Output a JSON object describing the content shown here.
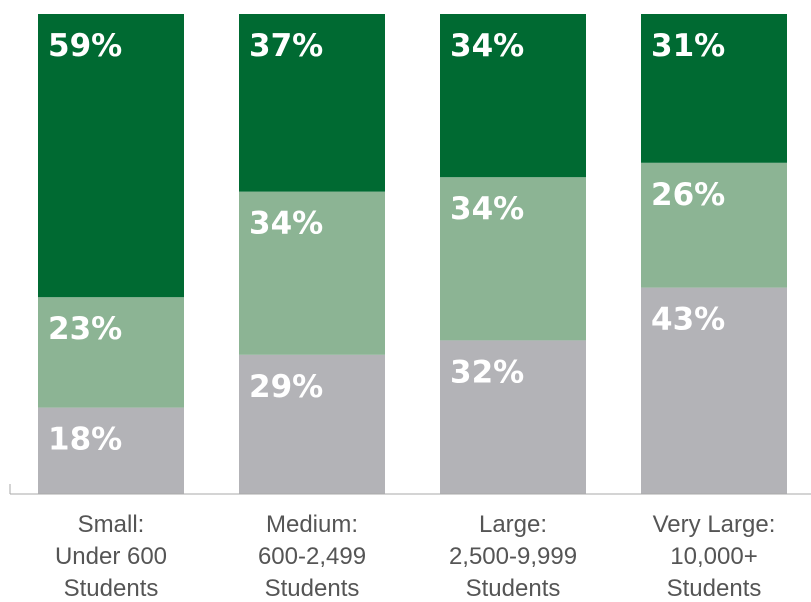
{
  "chart_data": {
    "type": "bar",
    "stacked": true,
    "categories": [
      [
        "Small:",
        "Under 600",
        "Students"
      ],
      [
        "Medium:",
        "600-2,499",
        "Students"
      ],
      [
        "Large:",
        "2,500-9,999",
        "Students"
      ],
      [
        "Very Large:",
        "10,000+",
        "Students"
      ]
    ],
    "series": [
      {
        "color": "#b3b3b7",
        "values": [
          18,
          29,
          32,
          43
        ],
        "labels": [
          "18%",
          "29%",
          "32%",
          "43%"
        ]
      },
      {
        "color": "#8cb494",
        "values": [
          23,
          34,
          34,
          26
        ],
        "labels": [
          "23%",
          "34%",
          "34%",
          "26%"
        ]
      },
      {
        "color": "#006a32",
        "values": [
          59,
          37,
          34,
          31
        ],
        "labels": [
          "59%",
          "37%",
          "34%",
          "31%"
        ]
      }
    ],
    "ylim": [
      0,
      100
    ],
    "axis_color": "#aaaaaa",
    "grid": false,
    "legend": "none"
  }
}
